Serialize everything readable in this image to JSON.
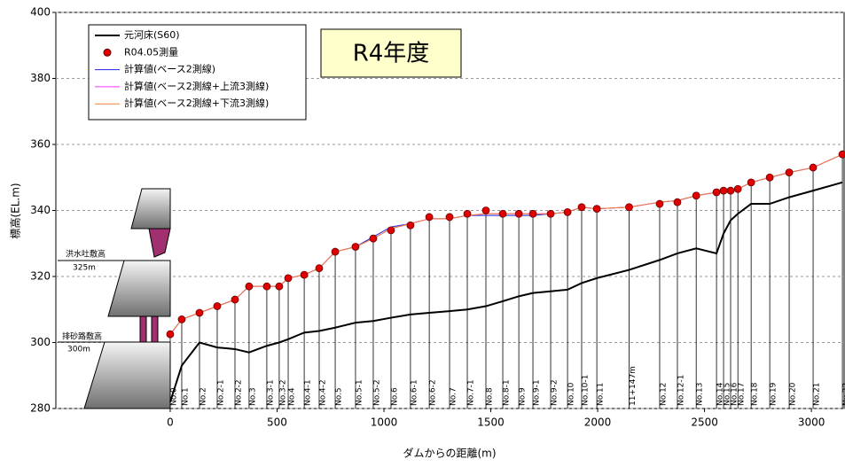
{
  "chart_data": {
    "type": "line",
    "title": "R4年度",
    "xlabel": "ダムからの距離(m)",
    "ylabel": "標高(EL.m)",
    "xlim": [
      -535,
      3153
    ],
    "ylim": [
      280,
      400
    ],
    "xticks": [
      0,
      500,
      1000,
      1500,
      2000,
      2500,
      3000
    ],
    "yticks": [
      280,
      300,
      320,
      340,
      360,
      380,
      400
    ],
    "grid": true,
    "legend": "upper left",
    "x": [
      0,
      54,
      137,
      220,
      303,
      369,
      452,
      510,
      552,
      627,
      697,
      772,
      867,
      950,
      1033,
      1124,
      1212,
      1307,
      1390,
      1477,
      1556,
      1631,
      1697,
      1780,
      1859,
      1925,
      1996,
      2147,
      2290,
      2373,
      2461,
      2556,
      2589,
      2622,
      2656,
      2718,
      2805,
      2896,
      3008,
      3145
    ],
    "station_labels": [
      "No.0",
      "No.1",
      "No.2",
      "No.2-1",
      "No.2-2",
      "No.3",
      "No.3-1",
      "No.3-2",
      "No.4",
      "No.4-1",
      "No.4-2",
      "No.5",
      "No.5-1",
      "No.5-2",
      "No.6",
      "No.6-1",
      "No.6-2",
      "No.7",
      "No.7-1",
      "No.8",
      "No.8-1",
      "No.9",
      "No.9-1",
      "No.9-2",
      "No.10",
      "No.10-1",
      "No.11",
      "11+147m",
      "No.12",
      "No.12-1",
      "No.13",
      "No.14",
      "No.15",
      "No.16",
      "No.17",
      "No.18",
      "No.19",
      "No.20",
      "No.21",
      "No.22"
    ],
    "series": [
      {
        "name": "元河床(S60)",
        "color": "#000000",
        "style": "line",
        "values": [
          282,
          293,
          300,
          298.5,
          298,
          297,
          299,
          300,
          301,
          303,
          303.5,
          304.5,
          306,
          306.5,
          307.5,
          308.5,
          309,
          309.5,
          310,
          311,
          312.5,
          314,
          315,
          315.5,
          316,
          318,
          319.5,
          322,
          325,
          327,
          328.5,
          327,
          333,
          337,
          339,
          342,
          342,
          344,
          346,
          348.5
        ]
      },
      {
        "name": "R04.05測量",
        "color": "#e00000",
        "style": "marker",
        "values": [
          302.5,
          307,
          309,
          311,
          313,
          317,
          317,
          317,
          319.5,
          320.5,
          322.5,
          327.5,
          329,
          331.5,
          334,
          335.5,
          338,
          338,
          339,
          340,
          339,
          339,
          339,
          339,
          339.5,
          341,
          340.5,
          341,
          342,
          342.5,
          344.5,
          345.5,
          346,
          346,
          346.5,
          348.5,
          350,
          351.5,
          353,
          357
        ]
      },
      {
        "name": "計算値(ベース2測線)",
        "color": "#2020e0",
        "style": "thin",
        "values": [
          302.5,
          307,
          309,
          311,
          313,
          317,
          317,
          317,
          319.5,
          320.5,
          322.5,
          327.5,
          329,
          332,
          335,
          336,
          337.5,
          337.5,
          338.5,
          338.5,
          338.5,
          338.5,
          338.5,
          339,
          339.5,
          341,
          340.5,
          341,
          342.5,
          343,
          344.5,
          345.5,
          346,
          346,
          346.5,
          348.5,
          350,
          351.5,
          353,
          357
        ]
      },
      {
        "name": "計算値(ベース2測線+上流3測線)",
        "color": "#ff33ff",
        "style": "thin",
        "values": [
          302.5,
          307,
          309,
          311,
          313,
          317,
          317,
          317,
          319.5,
          320.5,
          322.5,
          327.5,
          329,
          331.5,
          334.5,
          336,
          337.5,
          337.5,
          338.5,
          339,
          339,
          339,
          339,
          339,
          339.5,
          341,
          340.5,
          341,
          342.5,
          343,
          344.5,
          345.5,
          346,
          346,
          346.5,
          348.5,
          350,
          351.5,
          353,
          357
        ]
      },
      {
        "name": "計算値(ベース2測線+下流3測線)",
        "color": "#f08030",
        "style": "thin",
        "values": [
          302.5,
          307,
          309,
          311,
          313,
          317,
          317,
          317,
          319.5,
          320.5,
          322.5,
          327.5,
          329,
          331.5,
          334.5,
          336,
          337.5,
          337.5,
          338.5,
          339,
          339,
          339,
          339,
          339,
          339.5,
          341,
          340.5,
          341,
          342.5,
          343,
          344.5,
          345.5,
          346,
          346,
          346.5,
          348.5,
          350,
          351.5,
          353,
          357
        ]
      }
    ],
    "annotations": [
      "洪水吐敷高",
      "325m",
      "排砂路敷高",
      "300m"
    ]
  }
}
